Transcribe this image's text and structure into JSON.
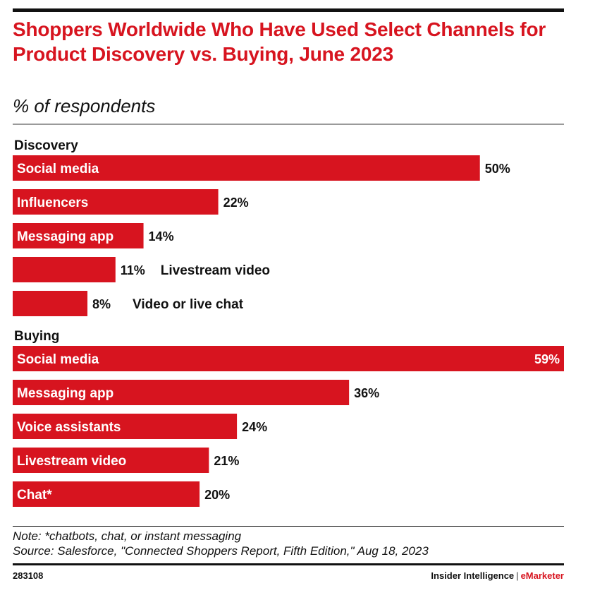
{
  "header": {
    "title": "Shoppers Worldwide Who Have Used Select Channels for Product Discovery vs. Buying, June 2023",
    "subtitle": "% of respondents"
  },
  "chart_data": {
    "type": "bar",
    "orientation": "horizontal",
    "colors": {
      "bar": "#d7141f"
    },
    "xlim": [
      0,
      59
    ],
    "groups": [
      {
        "name": "Discovery",
        "categories": [
          "Social media",
          "Influencers",
          "Messaging app",
          "Livestream video",
          "Video or live chat"
        ],
        "values": [
          50,
          22,
          14,
          11,
          8
        ],
        "value_labels": [
          "50%",
          "22%",
          "14%",
          "11%",
          "8%"
        ]
      },
      {
        "name": "Buying",
        "categories": [
          "Social media",
          "Messaging app",
          "Voice assistants",
          "Livestream video",
          "Chat*"
        ],
        "values": [
          59,
          36,
          24,
          21,
          20
        ],
        "value_labels": [
          "59%",
          "36%",
          "24%",
          "21%",
          "20%"
        ]
      }
    ]
  },
  "footer": {
    "note": "Note: *chatbots, chat, or instant messaging",
    "source": "Source: Salesforce, \"Connected Shoppers Report, Fifth Edition,\" Aug 18, 2023",
    "chart_id": "283108",
    "brand_left": "Insider Intelligence",
    "brand_sep": "|",
    "brand_right": "eMarketer"
  }
}
